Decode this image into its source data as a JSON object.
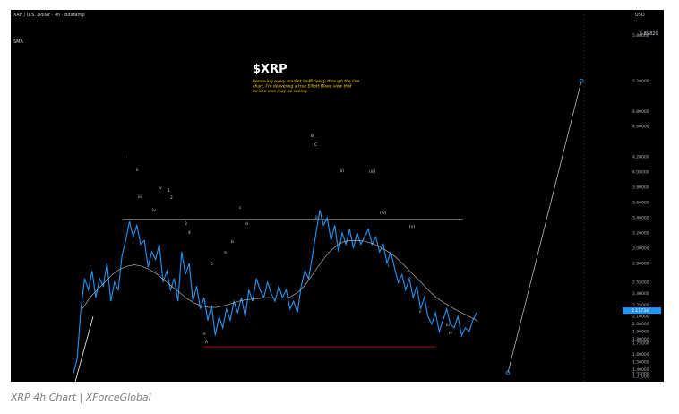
{
  "header": {
    "symbol_line": "XRP / U.S. Dollar · 4h · Bitstamp",
    "ind1": "SMA",
    "currency": "USD",
    "top_price": "5.89820"
  },
  "title": {
    "main": "$XRP",
    "note": "Removing every market inefficiency through the line chart, I'm delivering a true Elliott Wave view that no one else may be seeing."
  },
  "caption": "XRP 4h Chart | XForceGlobal",
  "last_price_tag": "2.17734",
  "last_price_sub": "2.17734",
  "colors": {
    "background": "#000000",
    "price_line": "#2196f3",
    "sma_line": "#b0b0b0",
    "resistance_line": "#8a8a8a",
    "support_line": "#b71c1c",
    "title_color": "#ffffff",
    "note_color": "#ffd600",
    "projection_line": "#d0d0d0"
  },
  "chart_data": {
    "type": "line",
    "title": "$XRP",
    "yaxis_ticks": [
      "5.80000",
      "5.20000",
      "4.80000",
      "4.60000",
      "4.20000",
      "4.00000",
      "3.80000",
      "3.60000",
      "3.40000",
      "3.20000",
      "3.00000",
      "2.80000",
      "2.55000",
      "2.40000",
      "2.25000",
      "2.10000",
      "2.00000",
      "1.90000",
      "1.80000",
      "1.75000",
      "1.60000",
      "1.50000",
      "1.40000",
      "1.35000",
      "1.31000"
    ],
    "price_series": [
      1.35,
      1.55,
      2.2,
      2.6,
      2.45,
      2.7,
      2.35,
      2.6,
      2.5,
      2.8,
      2.3,
      2.55,
      2.45,
      2.9,
      3.1,
      3.35,
      3.15,
      3.3,
      3.05,
      3.1,
      2.75,
      2.95,
      2.85,
      3.05,
      2.55,
      2.7,
      2.45,
      2.6,
      2.3,
      2.95,
      2.65,
      2.8,
      2.3,
      2.5,
      2.2,
      2.35,
      2.05,
      2.25,
      1.85,
      2.1,
      1.95,
      2.2,
      2.05,
      2.3,
      2.15,
      2.35,
      2.1,
      2.45,
      2.3,
      2.6,
      2.45,
      2.35,
      2.55,
      2.4,
      2.3,
      2.5,
      2.35,
      2.45,
      2.2,
      2.3,
      2.15,
      2.5,
      2.7,
      2.6,
      2.9,
      3.2,
      3.5,
      3.3,
      3.4,
      3.1,
      3.3,
      2.95,
      3.2,
      3.05,
      3.25,
      3.0,
      3.2,
      3.05,
      3.15,
      3.25,
      3.05,
      3.15,
      2.95,
      3.05,
      2.8,
      2.95,
      2.75,
      2.55,
      2.65,
      2.45,
      2.6,
      2.35,
      2.5,
      2.2,
      2.35,
      2.1,
      2.0,
      2.15,
      1.9,
      2.05,
      2.2,
      2.0,
      1.95,
      2.1,
      1.85,
      1.95,
      1.9,
      2.05,
      2.15
    ],
    "sma_series": [
      2.2,
      2.35,
      2.45,
      2.55,
      2.65,
      2.72,
      2.76,
      2.78,
      2.76,
      2.72,
      2.66,
      2.58,
      2.5,
      2.42,
      2.34,
      2.28,
      2.24,
      2.22,
      2.22,
      2.24,
      2.27,
      2.3,
      2.32,
      2.33,
      2.34,
      2.35,
      2.34,
      2.34,
      2.36,
      2.42,
      2.52,
      2.66,
      2.8,
      2.93,
      3.02,
      3.08,
      3.1,
      3.1,
      3.09,
      3.06,
      3.02,
      2.96,
      2.89,
      2.8,
      2.7,
      2.6,
      2.5,
      2.4,
      2.32,
      2.26,
      2.2,
      2.15,
      2.1,
      2.05
    ],
    "resistance_level": 3.38,
    "support_level": 1.7,
    "projection_target": 5.2
  },
  "waves": [
    "i",
    "ii",
    "iii",
    "iv",
    "v",
    "1",
    "2",
    "3",
    "4",
    "5",
    "a",
    "b",
    "c",
    "d",
    "e",
    "A",
    "B",
    "C",
    "(i)",
    "(ii)",
    "(iii)",
    "(iv)",
    "(v)"
  ]
}
